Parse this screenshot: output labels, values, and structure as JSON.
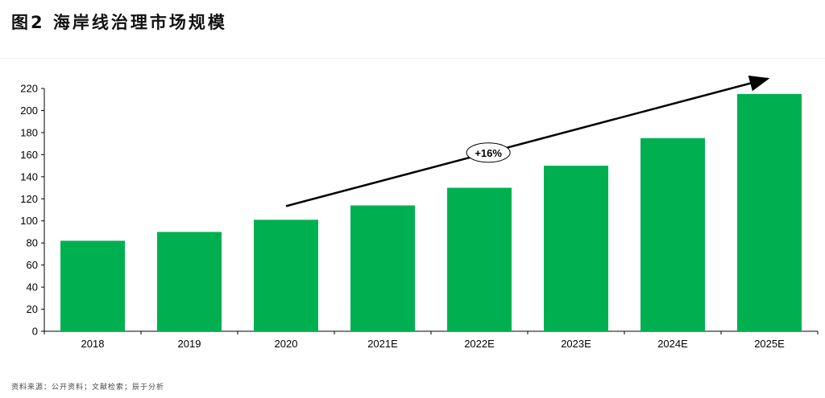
{
  "title": "图2 海岸线治理市场规模",
  "source": "资料来源：公开资料；文献检索；辰于分析",
  "annotation": "+16%",
  "colors": {
    "bar": "#00b050",
    "axis": "#000000",
    "text": "#000000"
  },
  "chart_data": {
    "type": "bar",
    "categories": [
      "2018",
      "2019",
      "2020",
      "2021E",
      "2022E",
      "2023E",
      "2024E",
      "2025E"
    ],
    "values": [
      82,
      90,
      101,
      114,
      130,
      150,
      175,
      215
    ],
    "ylim": [
      0,
      220
    ],
    "yticks": [
      0,
      20,
      40,
      60,
      80,
      100,
      120,
      140,
      160,
      180,
      200,
      220
    ],
    "grid": false,
    "legend": "none",
    "trend": {
      "label": "+16%",
      "from_category": "2020",
      "to_category": "2025E",
      "direction": "up"
    }
  }
}
